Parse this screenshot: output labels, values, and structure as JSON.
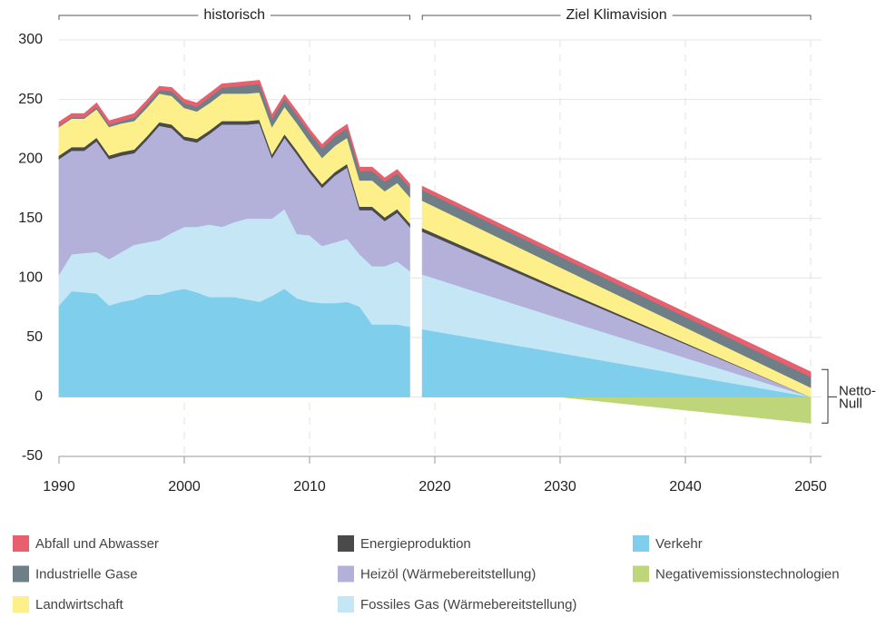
{
  "chart_data": {
    "type": "stacked_area",
    "periods": [
      {
        "label": "historisch",
        "range": [
          1990,
          2018
        ]
      },
      {
        "label": "Ziel Klimavision",
        "range": [
          2019,
          2050
        ]
      }
    ],
    "annotation": {
      "lines": [
        "Netto-",
        "Null"
      ],
      "range": [
        -22,
        23
      ]
    },
    "x": [
      1990,
      1991,
      1992,
      1993,
      1994,
      1995,
      1996,
      1997,
      1998,
      1999,
      2000,
      2001,
      2002,
      2003,
      2004,
      2005,
      2006,
      2007,
      2008,
      2009,
      2010,
      2011,
      2012,
      2013,
      2014,
      2015,
      2016,
      2017,
      2018,
      2019,
      2030,
      2050
    ],
    "series": [
      {
        "name": "Abfall und Abwasser",
        "color": "#e8606e",
        "values": [
          3,
          3,
          3,
          3,
          3,
          3,
          3,
          3,
          3,
          3,
          3,
          3,
          3,
          3,
          3,
          3,
          3,
          3,
          3,
          3,
          3,
          3,
          3,
          3,
          3,
          3,
          3,
          3,
          3,
          3,
          3,
          4
        ]
      },
      {
        "name": "Industrielle Gase",
        "color": "#6f7f87",
        "values": [
          1,
          1,
          1,
          2,
          2,
          2,
          3,
          3,
          3,
          4,
          4,
          4,
          5,
          5,
          6,
          7,
          7,
          7,
          7,
          7,
          7,
          8,
          8,
          8,
          8,
          8,
          8,
          8,
          8,
          9,
          9,
          9
        ]
      },
      {
        "name": "Landwirtschaft",
        "color": "#fdf08a",
        "values": [
          24,
          24,
          24,
          24,
          24,
          24,
          24,
          24,
          24,
          24,
          24,
          23,
          23,
          23,
          23,
          23,
          23,
          23,
          23,
          23,
          23,
          22,
          22,
          22,
          22,
          22,
          22,
          22,
          22,
          23,
          18,
          8
        ]
      },
      {
        "name": "Energieproduktion",
        "color": "#4a4a4a",
        "values": [
          3,
          3,
          3,
          3,
          3,
          3,
          3,
          3,
          3,
          3,
          3,
          3,
          3,
          3,
          3,
          3,
          3,
          3,
          3,
          3,
          3,
          3,
          3,
          3,
          3,
          3,
          3,
          3,
          3,
          3,
          2,
          0
        ]
      },
      {
        "name": "Heizöl (Wärmebereitstellung)",
        "color": "#b3b1d9",
        "values": [
          97,
          87,
          86,
          93,
          84,
          81,
          77,
          86,
          96,
          88,
          73,
          71,
          76,
          86,
          82,
          79,
          80,
          51,
          60,
          67,
          53,
          49,
          56,
          60,
          37,
          47,
          38,
          41,
          37,
          36,
          23,
          0
        ]
      },
      {
        "name": "Fossiles Gas (Wärmebereitstellung)",
        "color": "#c5e6f5",
        "values": [
          26,
          31,
          33,
          35,
          39,
          42,
          46,
          44,
          46,
          49,
          52,
          55,
          61,
          59,
          63,
          68,
          70,
          65,
          67,
          54,
          56,
          48,
          51,
          53,
          44,
          49,
          49,
          53,
          47,
          46,
          29,
          0
        ]
      },
      {
        "name": "Verkehr",
        "color": "#7fcfec",
        "values": [
          77,
          89,
          88,
          87,
          77,
          80,
          82,
          86,
          86,
          89,
          91,
          88,
          84,
          84,
          84,
          82,
          80,
          85,
          91,
          83,
          80,
          79,
          79,
          80,
          76,
          61,
          61,
          61,
          59,
          57,
          37,
          0
        ]
      },
      {
        "name": "Negativemissionstechnologien",
        "color": "#bed57a",
        "values": [
          null,
          null,
          null,
          null,
          null,
          null,
          null,
          null,
          null,
          null,
          null,
          null,
          null,
          null,
          null,
          null,
          null,
          null,
          null,
          null,
          null,
          null,
          null,
          null,
          null,
          null,
          null,
          null,
          null,
          0,
          0,
          -22
        ]
      }
    ],
    "xlim": [
      1990,
      2050
    ],
    "xticks": [
      1990,
      2000,
      2010,
      2020,
      2030,
      2040,
      2050
    ],
    "ylim": [
      -50,
      300
    ],
    "yticks": [
      -50,
      0,
      50,
      100,
      150,
      200,
      250,
      300
    ],
    "grid": true
  }
}
